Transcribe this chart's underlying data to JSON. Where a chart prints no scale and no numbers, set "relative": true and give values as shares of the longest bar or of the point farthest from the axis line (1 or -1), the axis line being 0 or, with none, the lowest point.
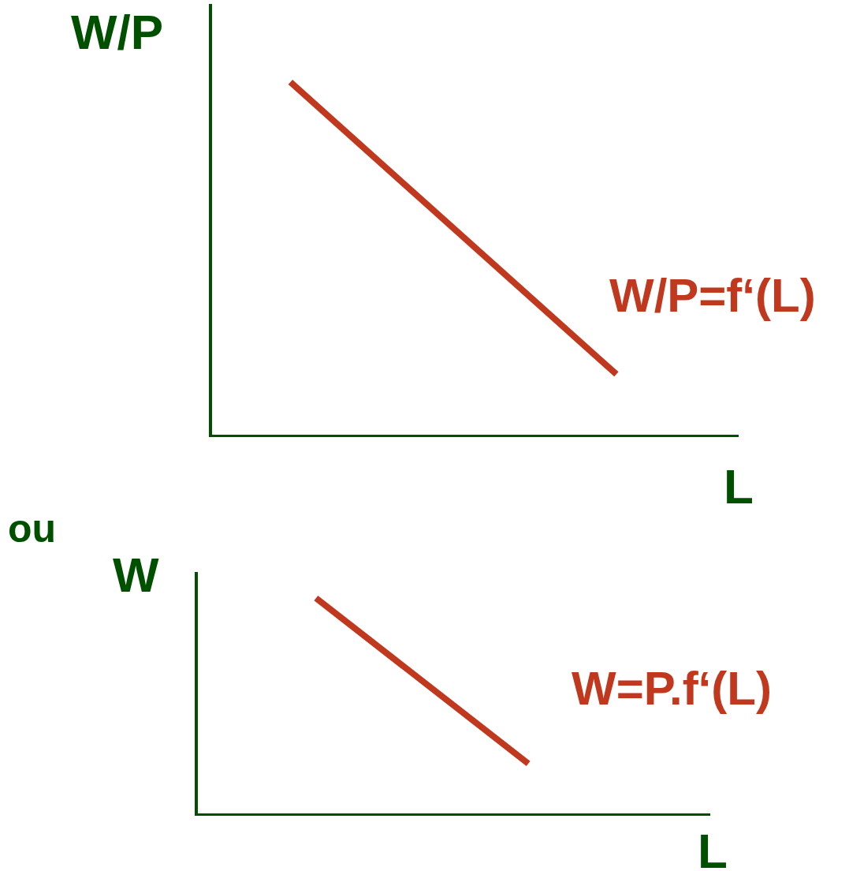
{
  "chart_data": [
    {
      "type": "line",
      "relative": true,
      "ylabel": "W/P",
      "xlabel": "L",
      "annotations": [
        "W/P=f‘(L)"
      ],
      "categories": [
        null,
        null,
        null,
        null,
        null,
        null,
        null,
        null,
        null,
        null,
        null,
        null,
        null,
        null
      ],
      "color": "#c0391f",
      "values": [
        null,
        null,
        1,
        null,
        null,
        null,
        null,
        null,
        null,
        null,
        0.177,
        null,
        null,
        null
      ]
    },
    {
      "type": "line",
      "relative": true,
      "title": "ou",
      "ylabel": "W",
      "xlabel": "L",
      "annotations": [
        "W=P.f‘(L)"
      ],
      "categories": [
        null,
        null,
        null,
        null,
        null,
        null,
        null,
        null,
        null,
        null,
        null,
        null,
        null,
        null,
        null,
        null,
        null,
        null
      ],
      "color": "#c0391f",
      "values": [
        null,
        null,
        null,
        null,
        1,
        null,
        null,
        null,
        null,
        null,
        null,
        0.24,
        null,
        null,
        null,
        null,
        null,
        null
      ]
    }
  ]
}
